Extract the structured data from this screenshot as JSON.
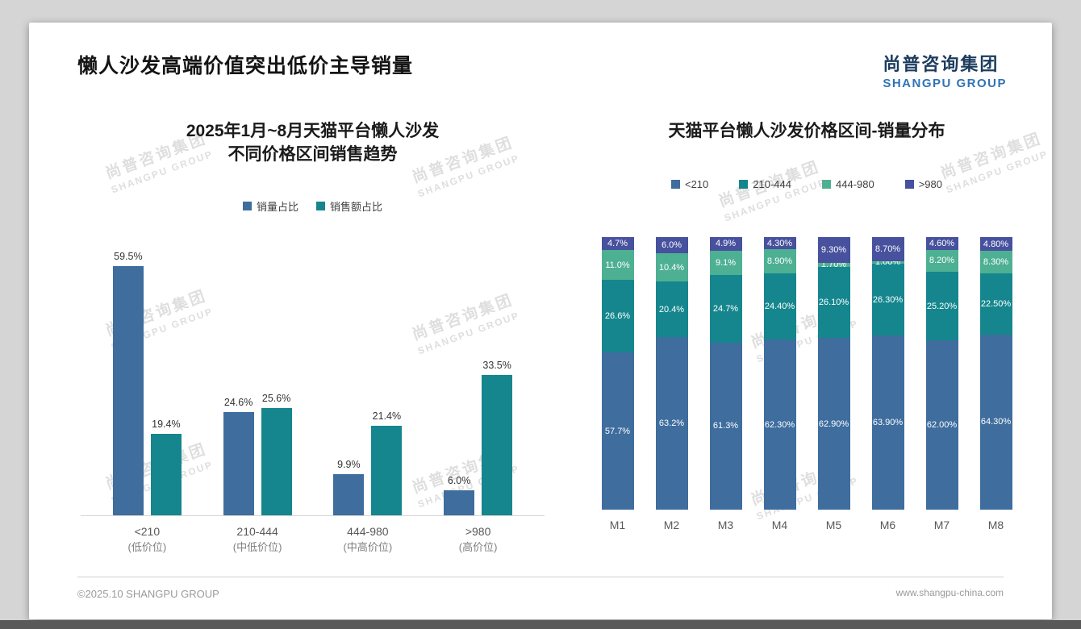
{
  "slide": {
    "title": "懒人沙发高端价值突出低价主导销量",
    "logo": {
      "cn": "尚普咨询集团",
      "en": "SHANGPU GROUP"
    },
    "footer": {
      "left": "©2025.10 SHANGPU GROUP",
      "right": "www.shangpu-china.com"
    }
  },
  "watermark": {
    "line1": "尚普咨询集团",
    "line2": "SHANGPU GROUP"
  },
  "chart_data": [
    {
      "type": "bar",
      "stacked": false,
      "title_lines": [
        "2025年1月~8月天猫平台懒人沙发",
        "不同价格区间销售趋势"
      ],
      "categories": [
        "<210",
        "210-444",
        "444-980",
        ">980"
      ],
      "category_sublabels": [
        "(低价位)",
        "(中低价位)",
        "(中高价位)",
        "(高价位)"
      ],
      "unit": "%",
      "ylim": [
        0,
        65
      ],
      "legend_position": "top",
      "grid": false,
      "series": [
        {
          "name": "销量占比",
          "color": "#3e6d9e",
          "values": [
            59.5,
            24.6,
            9.9,
            6.0
          ],
          "labels": [
            "59.5%",
            "24.6%",
            "9.9%",
            "6.0%"
          ]
        },
        {
          "name": "销售额占比",
          "color": "#15868d",
          "values": [
            19.4,
            25.6,
            21.4,
            33.5
          ],
          "labels": [
            "19.4%",
            "25.6%",
            "21.4%",
            "33.5%"
          ]
        }
      ]
    },
    {
      "type": "bar",
      "stacked": true,
      "title": "天猫平台懒人沙发价格区间-销量分布",
      "categories": [
        "M1",
        "M2",
        "M3",
        "M4",
        "M5",
        "M6",
        "M7",
        "M8"
      ],
      "unit": "%",
      "ylim": [
        0,
        100
      ],
      "legend_position": "top",
      "grid": false,
      "series": [
        {
          "name": "<210",
          "color": "#3e6d9e",
          "values": [
            57.7,
            63.2,
            61.3,
            62.3,
            62.9,
            63.9,
            62.0,
            64.3
          ],
          "labels": [
            "57.7%",
            "63.2%",
            "61.3%",
            "62.30%",
            "62.90%",
            "63.90%",
            "62.00%",
            "64.30%"
          ]
        },
        {
          "name": "210-444",
          "color": "#15868d",
          "values": [
            26.6,
            20.4,
            24.7,
            24.4,
            26.1,
            26.3,
            25.2,
            22.5
          ],
          "labels": [
            "26.6%",
            "20.4%",
            "24.7%",
            "24.40%",
            "26.10%",
            "26.30%",
            "25.20%",
            "22.50%"
          ]
        },
        {
          "name": "444-980",
          "color": "#4eb092",
          "values": [
            11.0,
            10.4,
            9.1,
            8.9,
            1.7,
            1.0,
            8.2,
            8.3
          ],
          "labels": [
            "11.0%",
            "10.4%",
            "9.1%",
            "8.90%",
            "1.70%",
            "1.00%",
            "8.20%",
            "8.30%"
          ]
        },
        {
          "name": ">980",
          "color": "#47519d",
          "values": [
            4.7,
            6.0,
            4.9,
            4.3,
            9.3,
            8.7,
            4.6,
            4.8
          ],
          "labels": [
            "4.7%",
            "6.0%",
            "4.9%",
            "4.30%",
            "9.30%",
            "8.70%",
            "4.60%",
            "4.80%"
          ]
        }
      ]
    }
  ]
}
